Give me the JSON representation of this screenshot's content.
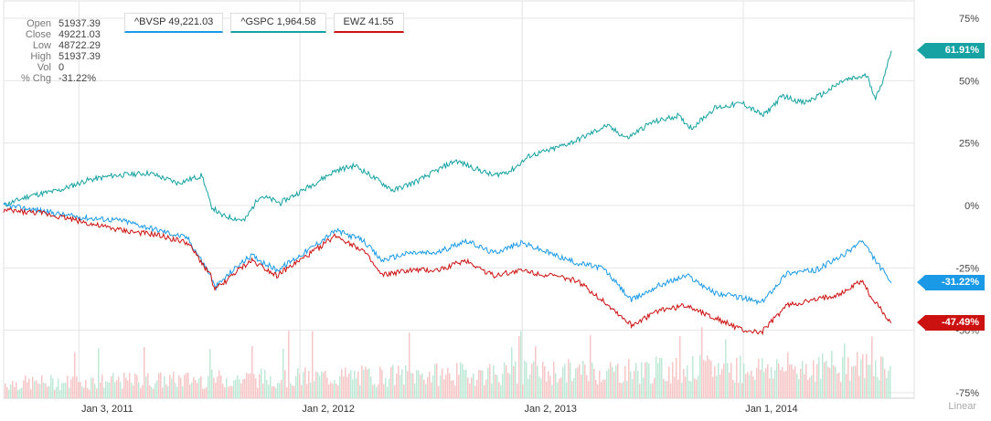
{
  "ohlc": [
    {
      "label": "Open",
      "value": "51937.39"
    },
    {
      "label": "Close",
      "value": "49221.03"
    },
    {
      "label": "Low",
      "value": "48722.29"
    },
    {
      "label": "High",
      "value": "51937.39"
    },
    {
      "label": "Vol",
      "value": "0"
    },
    {
      "label": "% Chg",
      "value": "-31.22%"
    }
  ],
  "legend": [
    {
      "label": "^BVSP 49,221.03",
      "color": "#1a9ae6"
    },
    {
      "label": "^GSPC 1,964.58",
      "color": "#16a2a2"
    },
    {
      "label": "EWZ 41.55",
      "color": "#cc1111"
    }
  ],
  "scale_label": "Linear",
  "chart_data": {
    "type": "line",
    "ylim": [
      -75,
      75
    ],
    "yticks": [
      75,
      50,
      25,
      0,
      -25,
      -50,
      -75
    ],
    "ytick_labels": [
      "75%",
      "50%",
      "25%",
      "0%",
      "-25%",
      "-50%",
      "-75%"
    ],
    "x_range": [
      "2010-09-01",
      "2014-09-02"
    ],
    "x_ticks": [
      "2011-01-03",
      "2012-01-02",
      "2013-01-02",
      "2014-01-01"
    ],
    "x_tick_labels": [
      "Jan 3, 2011",
      "Jan 2, 2012",
      "Jan 2, 2013",
      "Jan 1, 2014"
    ],
    "series": [
      {
        "name": "^GSPC 1,964.58",
        "color": "#16a2a2",
        "end_label": "61.91%",
        "x": [
          "2010-09-01",
          "2010-10-15",
          "2010-12-01",
          "2011-01-15",
          "2011-03-01",
          "2011-04-29",
          "2011-06-15",
          "2011-07-25",
          "2011-08-08",
          "2011-08-25",
          "2011-10-03",
          "2011-10-28",
          "2011-12-01",
          "2012-01-20",
          "2012-03-01",
          "2012-04-02",
          "2012-06-04",
          "2012-07-15",
          "2012-09-14",
          "2012-11-15",
          "2012-12-15",
          "2013-01-15",
          "2013-02-15",
          "2013-04-01",
          "2013-05-21",
          "2013-06-24",
          "2013-08-01",
          "2013-09-15",
          "2013-10-08",
          "2013-11-15",
          "2013-12-31",
          "2014-02-03",
          "2014-03-07",
          "2014-04-11",
          "2014-05-15",
          "2014-06-15",
          "2014-07-24",
          "2014-08-07",
          "2014-08-15",
          "2014-09-02"
        ],
        "y": [
          0,
          4,
          6,
          10,
          12,
          13,
          9,
          12,
          0,
          -4,
          -6,
          4,
          1,
          8,
          14,
          16,
          6,
          10,
          18,
          12,
          14,
          20,
          22,
          26,
          32,
          27,
          33,
          36,
          31,
          39,
          41,
          36,
          44,
          41,
          45,
          50,
          52,
          43,
          47,
          62
        ]
      },
      {
        "name": "^BVSP 49,221.03",
        "color": "#1a9ae6",
        "end_label": "-31.22%",
        "x": [
          "2010-09-01",
          "2010-11-01",
          "2010-12-15",
          "2011-01-15",
          "2011-03-15",
          "2011-05-15",
          "2011-07-01",
          "2011-08-08",
          "2011-08-15",
          "2011-09-22",
          "2011-10-15",
          "2011-11-25",
          "2012-01-15",
          "2012-03-01",
          "2012-04-15",
          "2012-05-15",
          "2012-06-30",
          "2012-08-15",
          "2012-10-01",
          "2012-11-15",
          "2013-01-02",
          "2013-02-15",
          "2013-04-01",
          "2013-05-15",
          "2013-07-01",
          "2013-08-15",
          "2013-10-01",
          "2013-11-15",
          "2013-12-31",
          "2014-01-31",
          "2014-03-14",
          "2014-04-30",
          "2014-06-15",
          "2014-07-15",
          "2014-08-01",
          "2014-09-02"
        ],
        "y": [
          0,
          -2,
          -4,
          -5,
          -6,
          -10,
          -13,
          -28,
          -33,
          -24,
          -20,
          -26,
          -18,
          -10,
          -14,
          -22,
          -19,
          -19,
          -14,
          -19,
          -15,
          -19,
          -23,
          -25,
          -38,
          -32,
          -28,
          -35,
          -37,
          -39,
          -27,
          -26,
          -20,
          -14,
          -20,
          -31
        ]
      },
      {
        "name": "EWZ 41.55",
        "color": "#cc1111",
        "end_label": "-47.49%",
        "x": [
          "2010-09-01",
          "2010-11-01",
          "2010-12-15",
          "2011-02-01",
          "2011-03-15",
          "2011-05-15",
          "2011-07-01",
          "2011-08-08",
          "2011-08-15",
          "2011-09-22",
          "2011-10-15",
          "2011-11-25",
          "2012-01-15",
          "2012-03-01",
          "2012-04-15",
          "2012-05-15",
          "2012-06-30",
          "2012-08-15",
          "2012-10-01",
          "2012-11-15",
          "2013-01-02",
          "2013-02-15",
          "2013-04-01",
          "2013-05-15",
          "2013-07-01",
          "2013-08-15",
          "2013-10-01",
          "2013-11-15",
          "2013-12-31",
          "2014-01-31",
          "2014-03-14",
          "2014-04-30",
          "2014-06-15",
          "2014-07-15",
          "2014-08-01",
          "2014-09-02"
        ],
        "y": [
          -2,
          -3,
          -5,
          -8,
          -10,
          -12,
          -15,
          -28,
          -34,
          -26,
          -22,
          -28,
          -20,
          -12,
          -18,
          -28,
          -26,
          -26,
          -22,
          -28,
          -26,
          -28,
          -30,
          -38,
          -48,
          -42,
          -40,
          -45,
          -50,
          -51,
          -40,
          -38,
          -35,
          -30,
          -37,
          -47
        ]
      }
    ]
  }
}
